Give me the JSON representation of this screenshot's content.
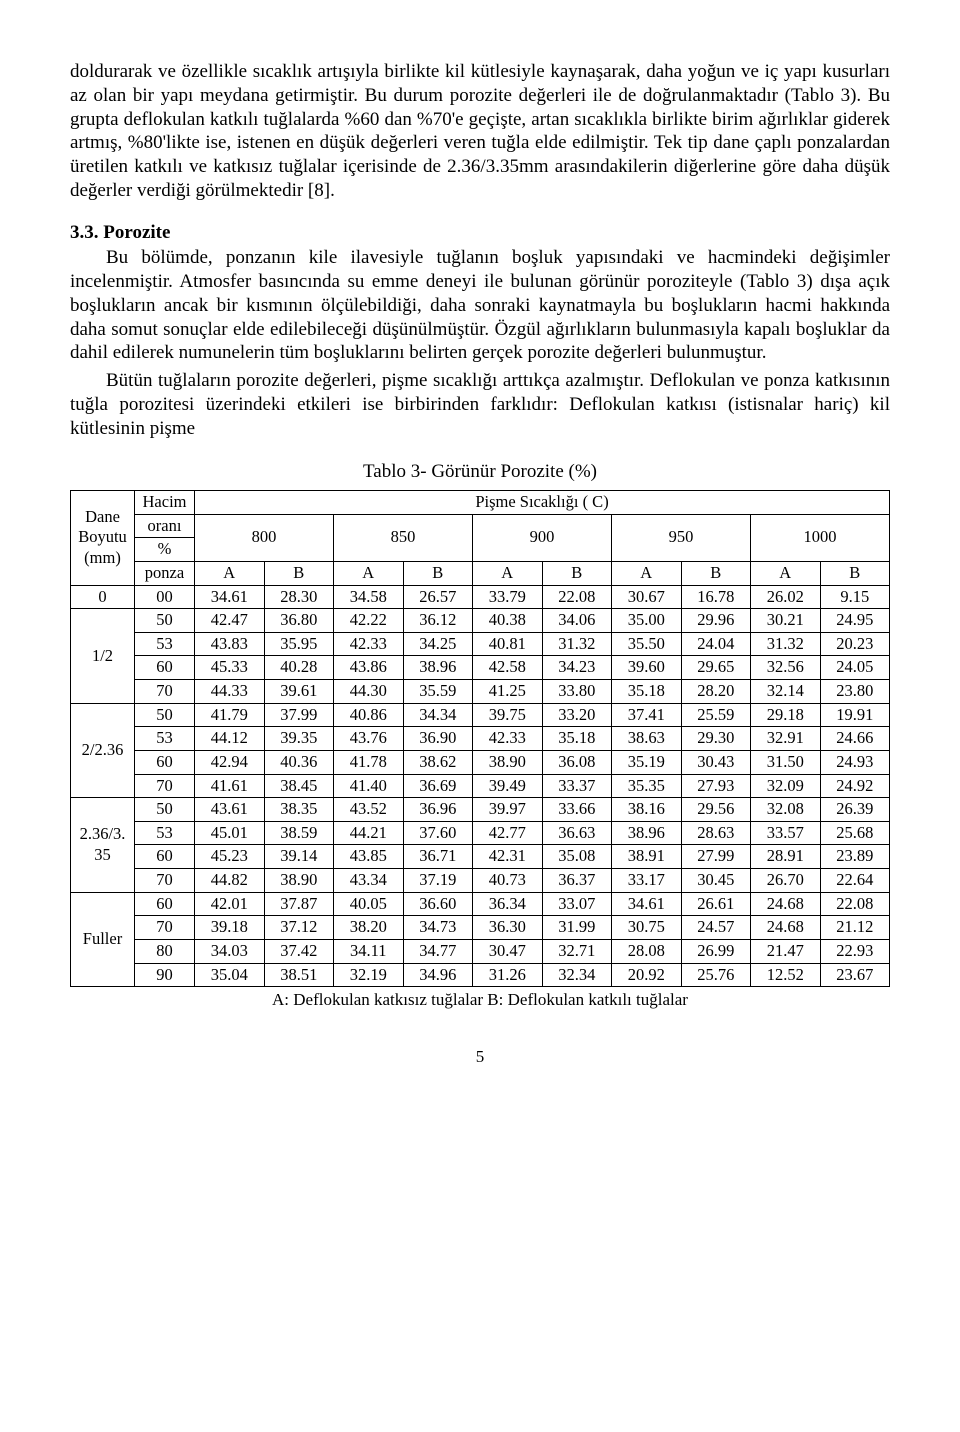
{
  "para1": "doldurarak ve özellikle sıcaklık artışıyla birlikte kil kütlesiyle kaynaşarak, daha yoğun ve iç yapı kusurları az olan bir yapı meydana getirmiştir. Bu durum porozite değerleri ile de doğrulanmaktadır (Tablo 3). Bu grupta deflokulan katkılı tuğlalarda %60 dan %70'e geçişte, artan sıcaklıkla birlikte birim ağırlıklar giderek artmış, %80'likte ise, istenen en düşük değerleri veren tuğla elde edilmiştir. Tek tip dane çaplı ponzalardan üretilen katkılı ve katkısız tuğlalar içerisinde de 2.36/3.35mm arasındakilerin diğerlerine göre daha düşük değerler verdiği görülmektedir [8].",
  "sec_heading": "3.3. Porozite",
  "para2a": "Bu bölümde, ponzanın kile ilavesiyle tuğlanın boşluk yapısındaki ve hacmindeki değişimler incelenmiştir. Atmosfer basıncında su emme deneyi ile bulunan görünür poroziteyle (Tablo 3) dışa açık boşlukların ancak bir kısmının ölçülebildiği, daha sonraki kaynatmayla bu boşlukların hacmi hakkında daha somut sonuçlar elde edilebileceği düşünülmüştür. Özgül ağırlıkların bulunmasıyla kapalı boşluklar da dahil edilerek numunelerin tüm boşluklarını belirten gerçek porozite değerleri bulunmuştur.",
  "para2b": "Bütün tuğlaların porozite değerleri, pişme sıcaklığı arttıkça azalmıştır. Deflokulan ve ponza katkısının tuğla porozitesi üzerindeki etkileri ise birbirinden farklıdır: Deflokulan katkısı (istisnalar hariç) kil kütlesinin pişme",
  "table_title": "Tablo 3- Görünür Porozite (%)",
  "headers": {
    "dane": "Dane Boyutu (mm)",
    "hacim_l1": "Hacim",
    "hacim_l2": "oranı",
    "hacim_l3": "%",
    "hacim_l4": "ponza",
    "pisme": "Pişme Sıcaklığı (  C)",
    "A": "A",
    "B": "B"
  },
  "temps": [
    "800",
    "850",
    "900",
    "950",
    "1000"
  ],
  "groups": [
    {
      "dane": "0",
      "rows": [
        {
          "hacim": "00",
          "v": [
            "34.61",
            "28.30",
            "34.58",
            "26.57",
            "33.79",
            "22.08",
            "30.67",
            "16.78",
            "26.02",
            "9.15"
          ]
        }
      ]
    },
    {
      "dane": "1/2",
      "rows": [
        {
          "hacim": "50",
          "v": [
            "42.47",
            "36.80",
            "42.22",
            "36.12",
            "40.38",
            "34.06",
            "35.00",
            "29.96",
            "30.21",
            "24.95"
          ]
        },
        {
          "hacim": "53",
          "v": [
            "43.83",
            "35.95",
            "42.33",
            "34.25",
            "40.81",
            "31.32",
            "35.50",
            "24.04",
            "31.32",
            "20.23"
          ]
        },
        {
          "hacim": "60",
          "v": [
            "45.33",
            "40.28",
            "43.86",
            "38.96",
            "42.58",
            "34.23",
            "39.60",
            "29.65",
            "32.56",
            "24.05"
          ]
        },
        {
          "hacim": "70",
          "v": [
            "44.33",
            "39.61",
            "44.30",
            "35.59",
            "41.25",
            "33.80",
            "35.18",
            "28.20",
            "32.14",
            "23.80"
          ]
        }
      ]
    },
    {
      "dane": "2/2.36",
      "rows": [
        {
          "hacim": "50",
          "v": [
            "41.79",
            "37.99",
            "40.86",
            "34.34",
            "39.75",
            "33.20",
            "37.41",
            "25.59",
            "29.18",
            "19.91"
          ]
        },
        {
          "hacim": "53",
          "v": [
            "44.12",
            "39.35",
            "43.76",
            "36.90",
            "42.33",
            "35.18",
            "38.63",
            "29.30",
            "32.91",
            "24.66"
          ]
        },
        {
          "hacim": "60",
          "v": [
            "42.94",
            "40.36",
            "41.78",
            "38.62",
            "38.90",
            "36.08",
            "35.19",
            "30.43",
            "31.50",
            "24.93"
          ]
        },
        {
          "hacim": "70",
          "v": [
            "41.61",
            "38.45",
            "41.40",
            "36.69",
            "39.49",
            "33.37",
            "35.35",
            "27.93",
            "32.09",
            "24.92"
          ]
        }
      ]
    },
    {
      "dane": "2.36/3.35",
      "rows": [
        {
          "hacim": "50",
          "v": [
            "43.61",
            "38.35",
            "43.52",
            "36.96",
            "39.97",
            "33.66",
            "38.16",
            "29.56",
            "32.08",
            "26.39"
          ]
        },
        {
          "hacim": "53",
          "v": [
            "45.01",
            "38.59",
            "44.21",
            "37.60",
            "42.77",
            "36.63",
            "38.96",
            "28.63",
            "33.57",
            "25.68"
          ]
        },
        {
          "hacim": "60",
          "v": [
            "45.23",
            "39.14",
            "43.85",
            "36.71",
            "42.31",
            "35.08",
            "38.91",
            "27.99",
            "28.91",
            "23.89"
          ]
        },
        {
          "hacim": "70",
          "v": [
            "44.82",
            "38.90",
            "43.34",
            "37.19",
            "40.73",
            "36.37",
            "33.17",
            "30.45",
            "26.70",
            "22.64"
          ]
        }
      ]
    },
    {
      "dane": "Fuller",
      "rows": [
        {
          "hacim": "60",
          "v": [
            "42.01",
            "37.87",
            "40.05",
            "36.60",
            "36.34",
            "33.07",
            "34.61",
            "26.61",
            "24.68",
            "22.08"
          ]
        },
        {
          "hacim": "70",
          "v": [
            "39.18",
            "37.12",
            "38.20",
            "34.73",
            "36.30",
            "31.99",
            "30.75",
            "24.57",
            "24.68",
            "21.12"
          ]
        },
        {
          "hacim": "80",
          "v": [
            "34.03",
            "37.42",
            "34.11",
            "34.77",
            "30.47",
            "32.71",
            "28.08",
            "26.99",
            "21.47",
            "22.93"
          ]
        },
        {
          "hacim": "90",
          "v": [
            "35.04",
            "38.51",
            "32.19",
            "34.96",
            "31.26",
            "32.34",
            "20.92",
            "25.76",
            "12.52",
            "23.67"
          ]
        }
      ]
    }
  ],
  "footnote": "A: Deflokulan katkısız tuğlalar B: Deflokulan katkılı tuğlalar",
  "pagenum": "5"
}
